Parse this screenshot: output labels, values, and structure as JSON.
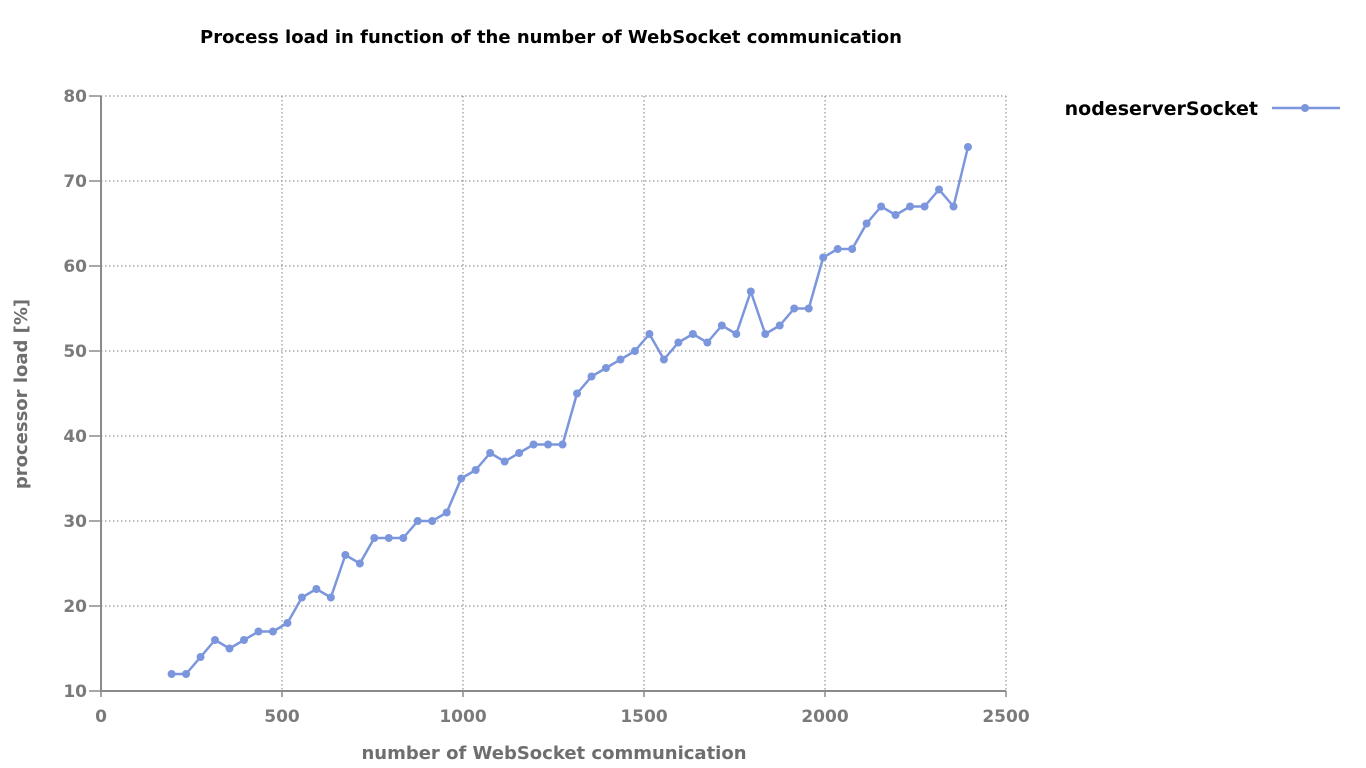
{
  "chart_data": {
    "type": "line",
    "title": "Process load in function of the number of WebSocket communication",
    "xlabel": "number of WebSocket communication",
    "ylabel": "processor load [%]",
    "xlim": [
      0,
      2500
    ],
    "ylim": [
      10,
      80
    ],
    "xticks": [
      0,
      500,
      1000,
      1500,
      2000,
      2500
    ],
    "yticks": [
      10,
      20,
      30,
      40,
      50,
      60,
      70,
      80
    ],
    "grid": true,
    "legend_position": "top-right-outside",
    "series": [
      {
        "name": "nodeserverSocket",
        "color": "#7b96dc",
        "x": [
          195,
          235,
          275,
          315,
          355,
          395,
          435,
          475,
          515,
          555,
          595,
          635,
          675,
          715,
          755,
          795,
          835,
          875,
          915,
          955,
          995,
          1035,
          1075,
          1115,
          1155,
          1195,
          1235,
          1275,
          1315,
          1355,
          1395,
          1435,
          1475,
          1515,
          1555,
          1595,
          1635,
          1675,
          1715,
          1755,
          1795,
          1835,
          1875,
          1915,
          1955,
          1995,
          2035,
          2075,
          2115,
          2155,
          2195,
          2235,
          2275,
          2315,
          2355,
          2395
        ],
        "y": [
          12,
          12,
          14,
          16,
          15,
          16,
          17,
          17,
          18,
          21,
          22,
          21,
          26,
          25,
          28,
          28,
          28,
          30,
          30,
          31,
          35,
          36,
          38,
          37,
          38,
          39,
          39,
          39,
          45,
          47,
          48,
          49,
          50,
          52,
          49,
          51,
          52,
          51,
          53,
          52,
          57,
          52,
          53,
          55,
          55,
          61,
          62,
          62,
          65,
          67,
          66,
          67,
          67,
          69,
          67,
          74
        ]
      }
    ]
  }
}
